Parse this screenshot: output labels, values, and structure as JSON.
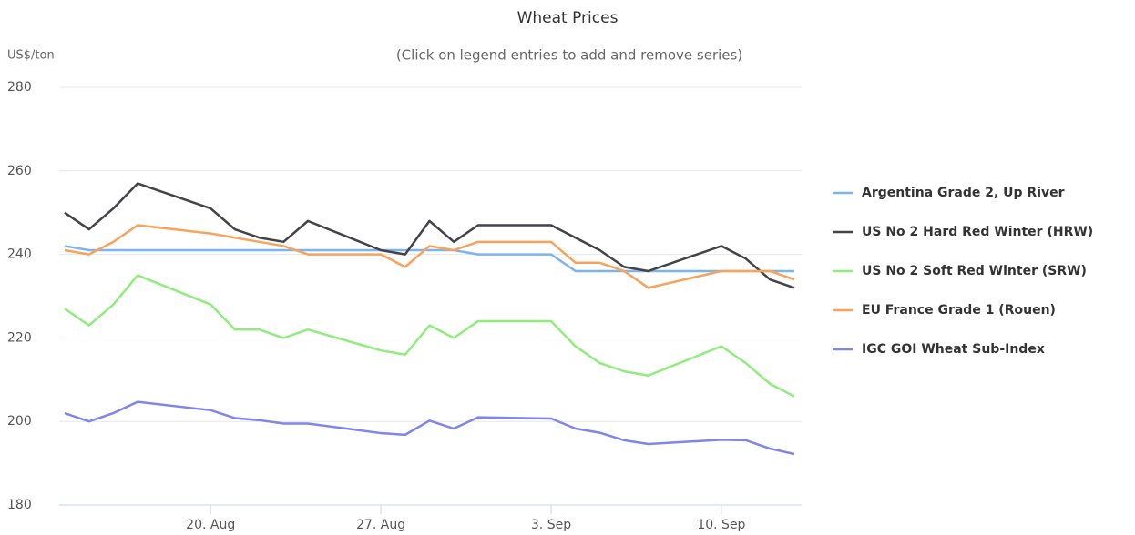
{
  "chart_data": {
    "type": "line",
    "title": "Wheat Prices",
    "subtitle": "(Click on legend entries to add and remove series)",
    "y_label": "US$/ton",
    "x": [
      "Aug 14",
      "Aug 15",
      "Aug 16",
      "Aug 17",
      "Aug 20",
      "Aug 21",
      "Aug 22",
      "Aug 23",
      "Aug 24",
      "Aug 27",
      "Aug 28",
      "Aug 29",
      "Aug 30",
      "Aug 31",
      "Sep 3",
      "Sep 4",
      "Sep 5",
      "Sep 6",
      "Sep 7",
      "Sep 10",
      "Sep 11",
      "Sep 12",
      "Sep 13"
    ],
    "xlim": [
      "Aug 14",
      "Sep 13"
    ],
    "xticks": [
      {
        "value": "Aug 20",
        "label": "20. Aug"
      },
      {
        "value": "Aug 27",
        "label": "27. Aug"
      },
      {
        "value": "Sep 3",
        "label": "3. Sep"
      },
      {
        "value": "Sep 10",
        "label": "10. Sep"
      }
    ],
    "ylim": [
      180,
      280
    ],
    "yticks": [
      180,
      200,
      220,
      240,
      260,
      280
    ],
    "grid": true,
    "legend": "right",
    "series": [
      {
        "name": "Argentina Grade 2, Up River",
        "color": "#7cb5ec",
        "values": [
          242,
          241,
          241,
          241,
          241,
          241,
          241,
          241,
          241,
          241,
          241,
          241,
          241,
          240,
          240,
          236,
          236,
          236,
          236,
          236,
          236,
          236,
          236
        ]
      },
      {
        "name": "US No 2 Hard Red Winter (HRW)",
        "color": "#434348",
        "values": [
          250,
          246,
          251,
          257,
          251,
          246,
          244,
          243,
          248,
          241,
          240,
          248,
          243,
          247,
          247,
          244,
          241,
          237,
          236,
          242,
          239,
          234,
          232
        ]
      },
      {
        "name": "US No 2 Soft Red Winter (SRW)",
        "color": "#90ed7d",
        "values": [
          227,
          223,
          228,
          235,
          228,
          222,
          222,
          220,
          222,
          217,
          216,
          223,
          220,
          224,
          224,
          218,
          214,
          212,
          211,
          218,
          214,
          209,
          206
        ]
      },
      {
        "name": "EU France Grade 1 (Rouen)",
        "color": "#f7a35c",
        "values": [
          241,
          240,
          243,
          247,
          245,
          244,
          243,
          242,
          240,
          240,
          237,
          242,
          241,
          243,
          243,
          238,
          238,
          236,
          232,
          236,
          236,
          236,
          234
        ]
      },
      {
        "name": "IGC GOI Wheat Sub-Index",
        "color": "#8085e9",
        "values": [
          202,
          200,
          202,
          204.7,
          202.7,
          200.8,
          200.3,
          199.5,
          199.5,
          197.2,
          196.8,
          200.2,
          198.3,
          201,
          200.7,
          198.3,
          197.3,
          195.5,
          194.6,
          195.6,
          195.5,
          193.5,
          192.2
        ]
      }
    ]
  }
}
